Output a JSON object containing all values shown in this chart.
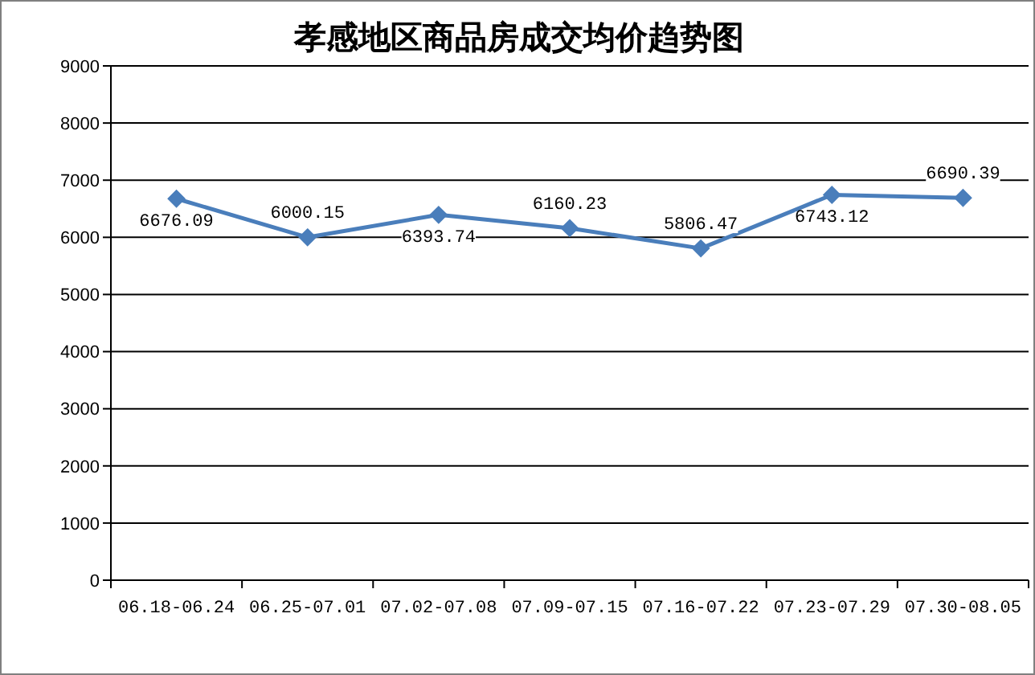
{
  "chart_data": {
    "type": "line",
    "title": "孝感地区商品房成交均价趋势图",
    "categories": [
      "06.18-06.24",
      "06.25-07.01",
      "07.02-07.08",
      "07.09-07.15",
      "07.16-07.22",
      "07.23-07.29",
      "07.30-08.05"
    ],
    "series": [
      {
        "color": "#4a7ebb",
        "values": [
          6676.09,
          6000.15,
          6393.74,
          6160.23,
          5806.47,
          6743.12,
          6690.39
        ]
      }
    ],
    "ylim": [
      0,
      9000
    ],
    "yticks": [
      0,
      1000,
      2000,
      3000,
      4000,
      5000,
      6000,
      7000,
      8000,
      9000
    ],
    "grid": "y",
    "marker": "diamond",
    "line_style": "solid",
    "data_labels": true
  }
}
